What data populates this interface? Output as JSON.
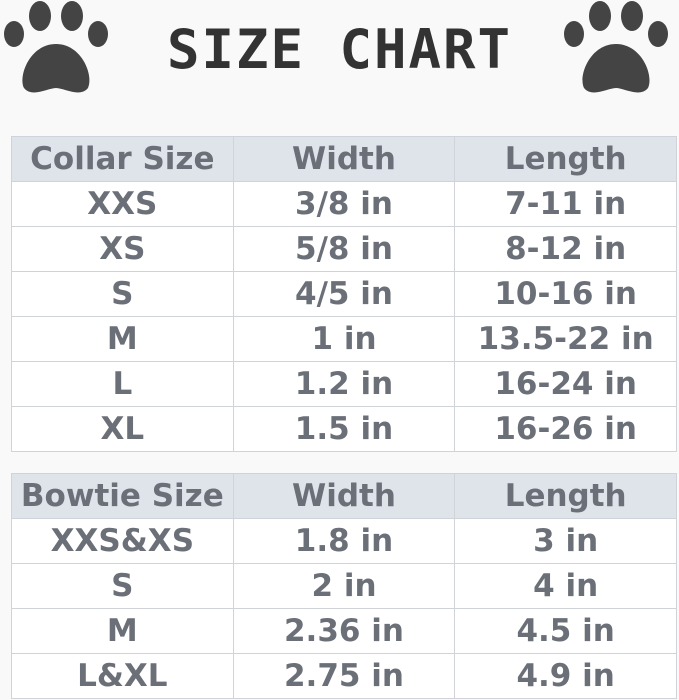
{
  "header": {
    "title": "SIZE CHART"
  },
  "tables": [
    {
      "columns": [
        "Collar Size",
        "Width",
        "Length"
      ],
      "rows": [
        [
          "XXS",
          "3/8 in",
          "7-11 in"
        ],
        [
          "XS",
          "5/8 in",
          "8-12 in"
        ],
        [
          "S",
          "4/5 in",
          "10-16 in"
        ],
        [
          "M",
          "1 in",
          "13.5-22 in"
        ],
        [
          "L",
          "1.2 in",
          "16-24 in"
        ],
        [
          "XL",
          "1.5 in",
          "16-26 in"
        ]
      ]
    },
    {
      "columns": [
        "Bowtie Size",
        "Width",
        "Length"
      ],
      "rows": [
        [
          "XXS&XS",
          "1.8 in",
          "3 in"
        ],
        [
          "S",
          "2 in",
          "4 in"
        ],
        [
          "M",
          "2.36 in",
          "4.5 in"
        ],
        [
          "L&XL",
          "2.75 in",
          "4.9 in"
        ]
      ]
    }
  ]
}
